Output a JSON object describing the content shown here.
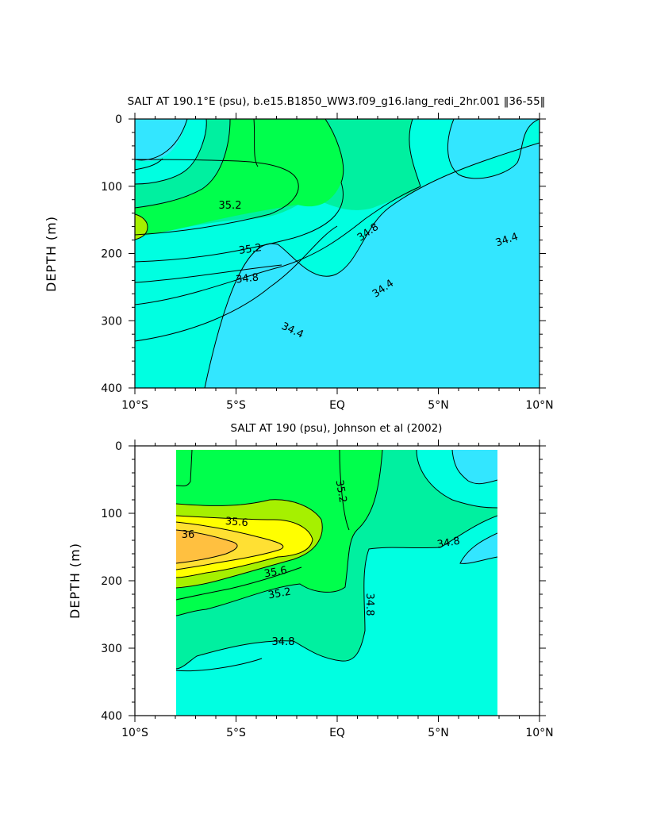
{
  "chart_data": [
    {
      "type": "contour",
      "title": "SALT AT 190.1°E (psu), b.e15.B1850_WW3.f09_g16.lang_redi_2hr.001 ‖36-55‖",
      "ylabel": "DEPTH (m)",
      "xlabel": "",
      "x_tick_labels": [
        "10°S",
        "5°S",
        "EQ",
        "5°N",
        "10°N"
      ],
      "x_ticks": [
        -10,
        -5,
        0,
        5,
        10
      ],
      "y_tick_labels": [
        "0",
        "100",
        "200",
        "300",
        "400"
      ],
      "y_ticks": [
        0,
        100,
        200,
        300,
        400
      ],
      "xlim": [
        -10,
        10
      ],
      "ylim": [
        400,
        0
      ],
      "contour_labels": [
        {
          "text": "35.2",
          "x": -6.3,
          "y": 124
        },
        {
          "text": "35.2",
          "x": -4.5,
          "y": 190
        },
        {
          "text": "34.8",
          "x": -4.6,
          "y": 232
        },
        {
          "text": "34.8",
          "x": 1.2,
          "y": 160
        },
        {
          "text": "34.4",
          "x": -2.8,
          "y": 310
        },
        {
          "text": "34.4",
          "x": 1.2,
          "y": 248
        },
        {
          "text": "34.4",
          "x": 8.4,
          "y": 180
        }
      ],
      "colors": {
        "cyan": "#33e6ff",
        "aqua": "#00ffe1",
        "green": "#00ff4c",
        "lightgreen": "#a6f000",
        "seafoam": "#00f0a0"
      }
    },
    {
      "type": "contour",
      "title": "SALT AT 190 (psu), Johnson et al (2002)",
      "ylabel": "DEPTH (m)",
      "xlabel": "",
      "x_tick_labels": [
        "10°S",
        "5°S",
        "EQ",
        "5°N",
        "10°N"
      ],
      "x_ticks": [
        -10,
        -5,
        0,
        5,
        10
      ],
      "y_tick_labels": [
        "0",
        "100",
        "200",
        "300",
        "400"
      ],
      "y_ticks": [
        0,
        100,
        200,
        300,
        400
      ],
      "xlim": [
        -10,
        10
      ],
      "ylim": [
        400,
        0
      ],
      "data_xrange": [
        -8,
        8
      ],
      "contour_labels": [
        {
          "text": "35.2",
          "x": 0.1,
          "y": 65
        },
        {
          "text": "35.6",
          "x": -5.6,
          "y": 112
        },
        {
          "text": "36",
          "x": -7.4,
          "y": 132
        },
        {
          "text": "35.6",
          "x": -3.0,
          "y": 180
        },
        {
          "text": "35.2",
          "x": -3.0,
          "y": 208
        },
        {
          "text": "34.8",
          "x": 1.4,
          "y": 238
        },
        {
          "text": "34.8",
          "x": 5.2,
          "y": 148
        },
        {
          "text": "34.8",
          "x": -2.7,
          "y": 296
        }
      ],
      "colors": {
        "cyan": "#33e6ff",
        "aqua": "#00ffe1",
        "seafoam": "#00f0a0",
        "green": "#00ff4c",
        "lightgreen": "#a6f000",
        "yellow": "#ffff00",
        "gold": "#ffe033",
        "orange": "#ffc040"
      }
    }
  ]
}
